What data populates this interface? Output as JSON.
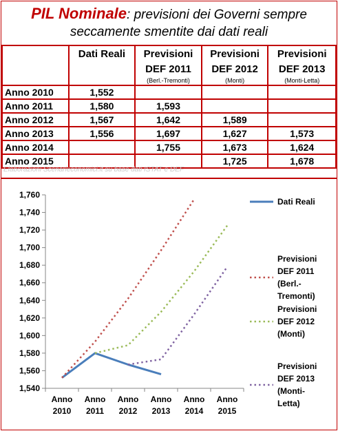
{
  "title": {
    "main": "PIL Nominale",
    "rest": ": previsioni dei Governi sempre",
    "line2": "seccamente smentite dai dati reali"
  },
  "table": {
    "headers": [
      {
        "main": "Dati Reali",
        "main2": "",
        "sub": ""
      },
      {
        "main": "Previsioni",
        "main2": "DEF 2011",
        "sub": "(Berl.-Tremonti)"
      },
      {
        "main": "Previsioni",
        "main2": "DEF 2012",
        "sub": "(Monti)"
      },
      {
        "main": "Previsioni",
        "main2": "DEF 2013",
        "sub": "(Monti-Letta)"
      }
    ],
    "rows": [
      {
        "label": "Anno 2010",
        "cells": [
          "1,552",
          "",
          "",
          ""
        ]
      },
      {
        "label": "Anno 2011",
        "cells": [
          "1,580",
          "1,593",
          "",
          ""
        ]
      },
      {
        "label": "Anno 2012",
        "cells": [
          "1,567",
          "1,642",
          "1,589",
          ""
        ]
      },
      {
        "label": "Anno 2013",
        "cells": [
          "1,556",
          "1,697",
          "1,627",
          "1,573"
        ]
      },
      {
        "label": "Anno 2014",
        "cells": [
          "",
          "1,755",
          "1,673",
          "1,624"
        ]
      },
      {
        "label": "Anno 2015",
        "cells": [
          "",
          "",
          "1,725",
          "1,678"
        ]
      }
    ]
  },
  "source_note": "Elaborazioni Scenarieconomici.it su base dati ISTAT e DEF",
  "colors": {
    "accent": "#c00000",
    "dati_reali": "#4a7ebb",
    "def2011": "#c0504d",
    "def2012": "#9bbb59",
    "def2013": "#8064a2"
  },
  "chart_data": {
    "type": "line",
    "categories": [
      "Anno 2010",
      "Anno 2011",
      "Anno 2012",
      "Anno 2013",
      "Anno 2014",
      "Anno 2015"
    ],
    "category_lines": [
      [
        "Anno",
        "2010"
      ],
      [
        "Anno",
        "2011"
      ],
      [
        "Anno",
        "2012"
      ],
      [
        "Anno",
        "2013"
      ],
      [
        "Anno",
        "2014"
      ],
      [
        "Anno",
        "2015"
      ]
    ],
    "ylim": [
      1540,
      1760
    ],
    "yticks": [
      1540,
      1560,
      1580,
      1600,
      1620,
      1640,
      1660,
      1680,
      1700,
      1720,
      1740,
      1760
    ],
    "ytick_labels": [
      "1,540",
      "1,560",
      "1,580",
      "1,600",
      "1,620",
      "1,640",
      "1,660",
      "1,680",
      "1,700",
      "1,720",
      "1,740",
      "1,760"
    ],
    "grid": false,
    "legend_position": "right",
    "series": [
      {
        "name": "Dati Reali",
        "legend_lines": [
          "Dati Reali"
        ],
        "color": "#4a7ebb",
        "style": "solid",
        "values": [
          1552,
          1580,
          1567,
          1556,
          null,
          null
        ]
      },
      {
        "name": "Previsioni DEF 2011 (Berl.-Tremonti)",
        "legend_lines": [
          "Previsioni",
          "DEF 2011",
          "(Berl.-",
          "Tremonti)"
        ],
        "color": "#c0504d",
        "style": "dotted",
        "values": [
          1552,
          1593,
          1642,
          1697,
          1755,
          null
        ]
      },
      {
        "name": "Previsioni DEF 2012 (Monti)",
        "legend_lines": [
          "Previsioni",
          "DEF 2012",
          "(Monti)"
        ],
        "color": "#9bbb59",
        "style": "dotted",
        "values": [
          null,
          1580,
          1589,
          1627,
          1673,
          1725
        ]
      },
      {
        "name": "Previsioni DEF 2013 (Monti-Letta)",
        "legend_lines": [
          "Previsioni",
          "DEF 2013",
          "(Monti-",
          "Letta)"
        ],
        "color": "#8064a2",
        "style": "dotted",
        "values": [
          null,
          null,
          1567,
          1573,
          1624,
          1678
        ]
      }
    ]
  }
}
